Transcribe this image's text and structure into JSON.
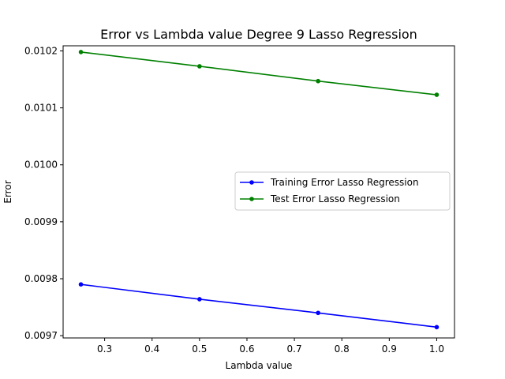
{
  "chart_data": {
    "type": "line",
    "title": "Error vs Lambda value Degree 9 Lasso Regression",
    "xlabel": "Lambda value",
    "ylabel": "Error",
    "xlim": [
      0.2125,
      1.0375
    ],
    "ylim": [
      0.009696,
      0.010209
    ],
    "x_ticks": [
      0.3,
      0.4,
      0.5,
      0.6,
      0.7,
      0.8,
      0.9,
      1.0
    ],
    "x_tick_labels": [
      "0.3",
      "0.4",
      "0.5",
      "0.6",
      "0.7",
      "0.8",
      "0.9",
      "1.0"
    ],
    "y_ticks": [
      0.0097,
      0.0098,
      0.0099,
      0.01,
      0.0101,
      0.0102
    ],
    "y_tick_labels": [
      "0.0097",
      "0.0098",
      "0.0099",
      "0.0100",
      "0.0101",
      "0.0102"
    ],
    "grid": false,
    "legend_position": "center-right",
    "x": [
      0.25,
      0.5,
      0.75,
      1.0
    ],
    "series": [
      {
        "name": "Training Error Lasso Regression",
        "color": "#0000ff",
        "values": [
          0.00979,
          0.009764,
          0.00974,
          0.009715
        ]
      },
      {
        "name": "Test Error Lasso Regression",
        "color": "#008000",
        "values": [
          0.010198,
          0.010173,
          0.010147,
          0.010123
        ]
      }
    ]
  }
}
